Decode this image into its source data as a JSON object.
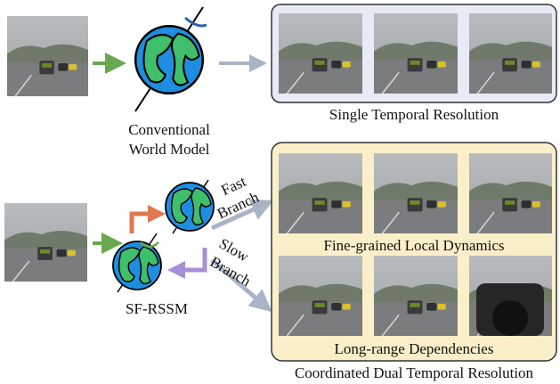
{
  "top": {
    "model_label": [
      "Conventional",
      "World Model"
    ],
    "caption": "Single Temporal Resolution"
  },
  "bottom": {
    "fast_branch": [
      "Fast",
      "Branch"
    ],
    "slow_branch": [
      "Slow",
      "Branch"
    ],
    "model_label": "SF-RSSM",
    "fast_caption": "Fine-grained Local Dynamics",
    "slow_caption": "Long-range Dependencies",
    "caption": "Coordinated Dual Temporal Resolution"
  }
}
